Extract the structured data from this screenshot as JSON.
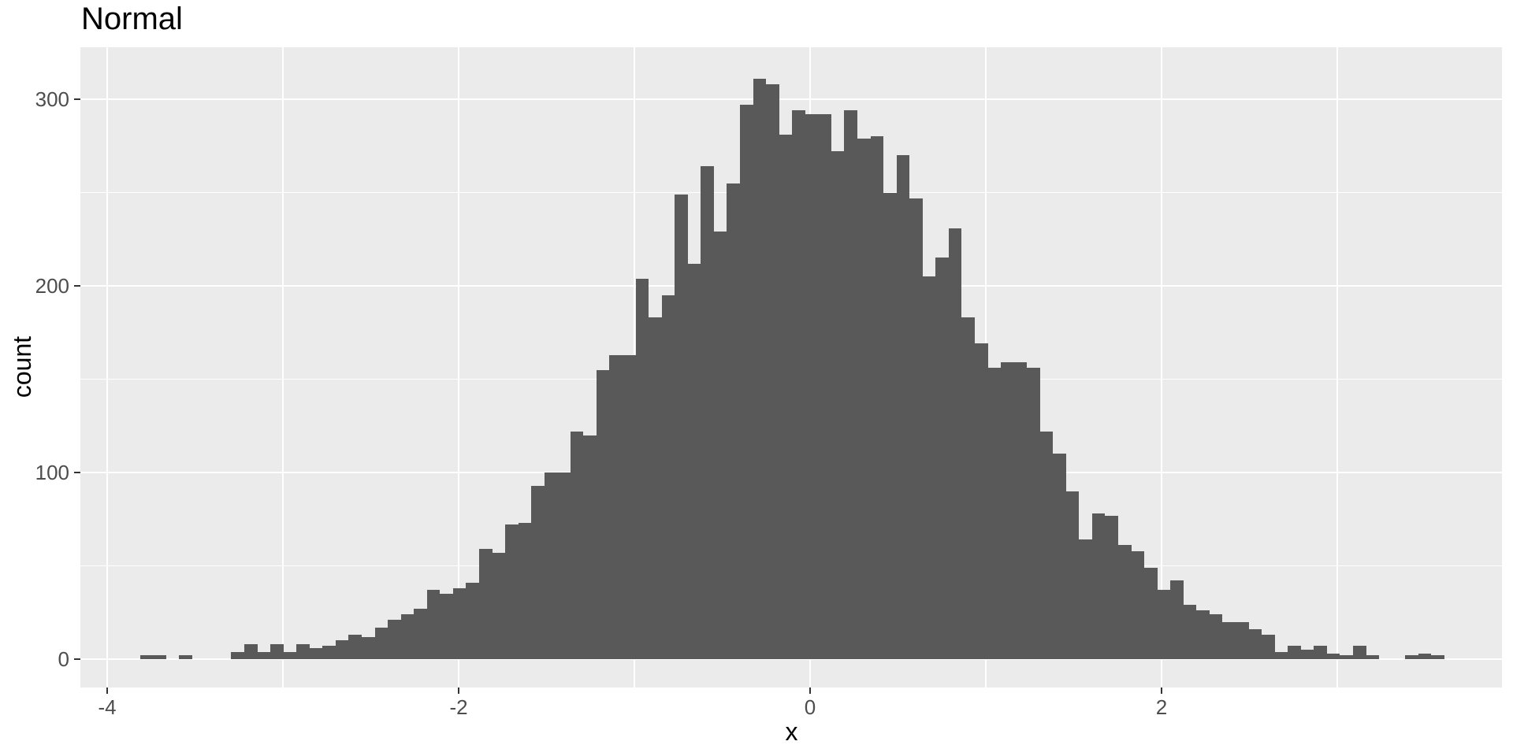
{
  "title": "Normal",
  "x_axis": {
    "label": "x",
    "tick_labels": [
      "-4",
      "-2",
      "0",
      "2"
    ],
    "tick_values": [
      -4,
      -2,
      0,
      2
    ]
  },
  "y_axis": {
    "label": "count",
    "tick_labels": [
      "0",
      "100",
      "200",
      "300"
    ],
    "tick_values": [
      0,
      100,
      200,
      300
    ]
  },
  "colors": {
    "page_bg": "#FFFFFF",
    "panel_bg": "#EBEBEB",
    "bar_fill": "#595959",
    "grid": "#FFFFFF",
    "axis_text": "#4D4D4D",
    "tick_mark": "#333333",
    "title_text": "#000000"
  },
  "chart_data": {
    "type": "bar",
    "subtype": "histogram",
    "title": "Normal",
    "xlabel": "x",
    "ylabel": "count",
    "n_total": 9980,
    "bins": 100,
    "bin_start": -3.8135,
    "bin_width": 0.074227,
    "counts": [
      2,
      2,
      0,
      2,
      0,
      0,
      0,
      4,
      8,
      4,
      8,
      4,
      8,
      6,
      7,
      10,
      13,
      12,
      17,
      21,
      24,
      27,
      37,
      35,
      38,
      41,
      59,
      57,
      72,
      73,
      93,
      100,
      100,
      122,
      120,
      155,
      163,
      163,
      204,
      183,
      195,
      249,
      212,
      264,
      229,
      255,
      297,
      311,
      308,
      281,
      294,
      292,
      292,
      272,
      294,
      279,
      280,
      250,
      270,
      247,
      205,
      215,
      231,
      183,
      169,
      156,
      159,
      159,
      156,
      122,
      110,
      90,
      64,
      78,
      77,
      61,
      58,
      49,
      37,
      42,
      29,
      26,
      24,
      20,
      20,
      16,
      13,
      4,
      7,
      5,
      7,
      3,
      2,
      7,
      2,
      0,
      0,
      2,
      3,
      2
    ],
    "xlim": [
      -4.15,
      3.94
    ],
    "ylim": [
      -15,
      327.6
    ],
    "x_major_gridlines": [
      -4,
      -2,
      0,
      2
    ],
    "x_minor_gridlines": [
      -3,
      -1,
      1,
      3
    ],
    "y_major_gridlines": [
      0,
      100,
      200,
      300
    ],
    "y_minor_gridlines": [
      50,
      150,
      250
    ],
    "grid": true,
    "legend": false
  }
}
